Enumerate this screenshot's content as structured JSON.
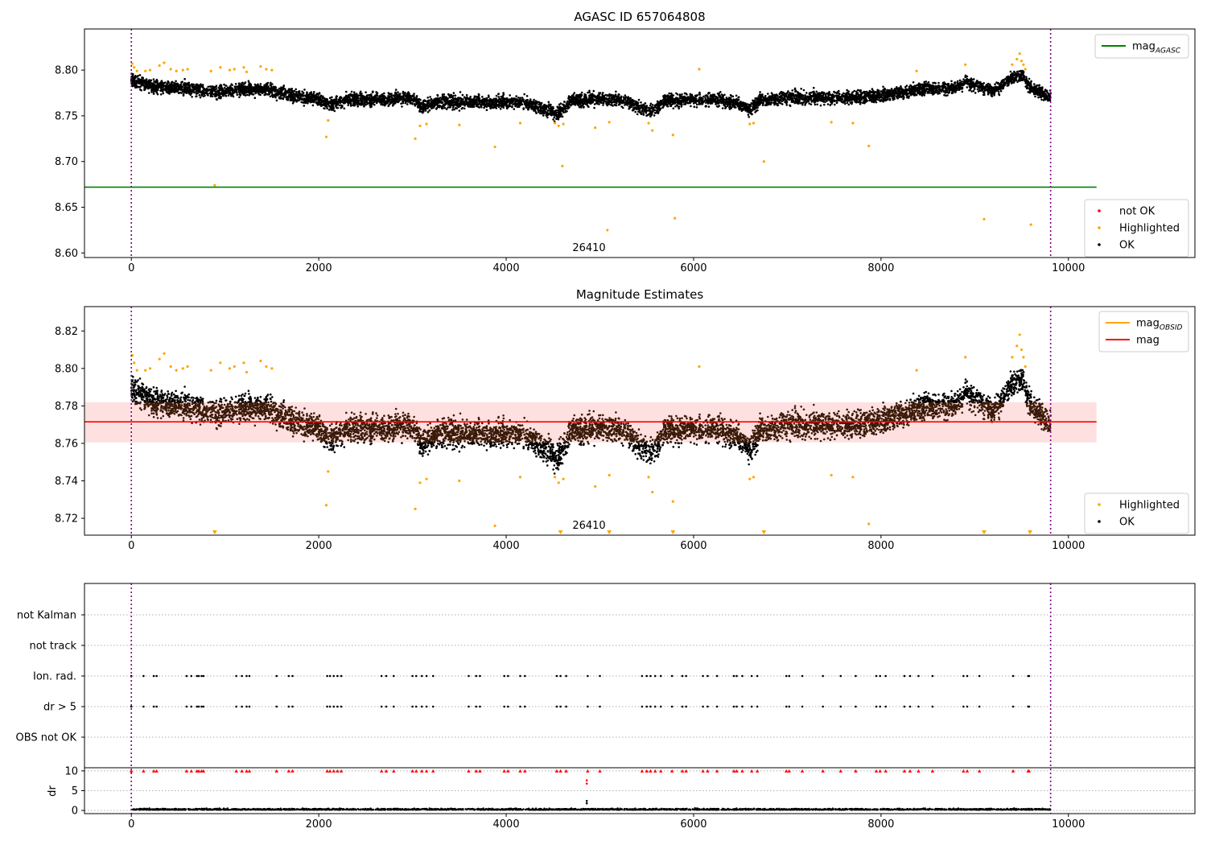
{
  "chart_data": [
    {
      "type": "scatter",
      "title": "AGASC ID 657064808",
      "annotation": "26410",
      "xlim": [
        -500,
        11350
      ],
      "ylim": [
        8.595,
        8.845
      ],
      "xticks": [
        0,
        2000,
        4000,
        6000,
        8000,
        10000
      ],
      "yticks": [
        8.6,
        8.65,
        8.7,
        8.75,
        8.8
      ],
      "vlines": [
        0,
        9810
      ],
      "hline": {
        "name": "mag",
        "sub": "AGASC",
        "y": 8.672,
        "x_range": [
          -500,
          10300
        ],
        "color": "#008000"
      },
      "legend_top": [
        {
          "name": "mag",
          "sub": "AGASC",
          "color": "#008000",
          "kind": "line"
        }
      ],
      "legend_bottom": [
        {
          "name": "not OK",
          "color": "#ff0000",
          "kind": "point"
        },
        {
          "name": "Highlighted",
          "color": "#ffa500",
          "kind": "point"
        },
        {
          "name": "OK",
          "color": "#000000",
          "kind": "point"
        }
      ],
      "ok_trend": [
        [
          0,
          8.79
        ],
        [
          250,
          8.781
        ],
        [
          600,
          8.78
        ],
        [
          900,
          8.776
        ],
        [
          1200,
          8.779
        ],
        [
          1500,
          8.778
        ],
        [
          1700,
          8.772
        ],
        [
          2000,
          8.768
        ],
        [
          2100,
          8.762
        ],
        [
          2300,
          8.768
        ],
        [
          2800,
          8.768
        ],
        [
          3000,
          8.77
        ],
        [
          3100,
          8.76
        ],
        [
          3300,
          8.766
        ],
        [
          3800,
          8.765
        ],
        [
          4200,
          8.765
        ],
        [
          4550,
          8.752
        ],
        [
          4700,
          8.767
        ],
        [
          5000,
          8.768
        ],
        [
          5200,
          8.768
        ],
        [
          5550,
          8.755
        ],
        [
          5700,
          8.767
        ],
        [
          6200,
          8.768
        ],
        [
          6500,
          8.763
        ],
        [
          6600,
          8.757
        ],
        [
          6700,
          8.766
        ],
        [
          7000,
          8.77
        ],
        [
          7500,
          8.77
        ],
        [
          7800,
          8.77
        ],
        [
          8000,
          8.772
        ],
        [
          8400,
          8.779
        ],
        [
          8800,
          8.781
        ],
        [
          8900,
          8.787
        ],
        [
          9200,
          8.777
        ],
        [
          9400,
          8.792
        ],
        [
          9500,
          8.794
        ],
        [
          9600,
          8.78
        ],
        [
          9810,
          8.77
        ]
      ],
      "ok_band": 0.012,
      "highlighted": [
        [
          10,
          8.807
        ],
        [
          30,
          8.803
        ],
        [
          60,
          8.799
        ],
        [
          150,
          8.799
        ],
        [
          200,
          8.8
        ],
        [
          300,
          8.805
        ],
        [
          350,
          8.808
        ],
        [
          420,
          8.801
        ],
        [
          480,
          8.799
        ],
        [
          550,
          8.8
        ],
        [
          600,
          8.801
        ],
        [
          850,
          8.799
        ],
        [
          890,
          8.674
        ],
        [
          950,
          8.803
        ],
        [
          1050,
          8.8
        ],
        [
          1100,
          8.801
        ],
        [
          1200,
          8.803
        ],
        [
          1230,
          8.798
        ],
        [
          1380,
          8.804
        ],
        [
          1440,
          8.801
        ],
        [
          1500,
          8.8
        ],
        [
          2080,
          8.727
        ],
        [
          2100,
          8.745
        ],
        [
          3030,
          8.725
        ],
        [
          3080,
          8.739
        ],
        [
          3150,
          8.741
        ],
        [
          3500,
          8.74
        ],
        [
          3880,
          8.716
        ],
        [
          4150,
          8.742
        ],
        [
          4520,
          8.742
        ],
        [
          4560,
          8.739
        ],
        [
          4600,
          8.695
        ],
        [
          4610,
          8.741
        ],
        [
          4950,
          8.737
        ],
        [
          5080,
          8.625
        ],
        [
          5100,
          8.743
        ],
        [
          5520,
          8.742
        ],
        [
          5560,
          8.734
        ],
        [
          5780,
          8.729
        ],
        [
          5800,
          8.638
        ],
        [
          6060,
          8.801
        ],
        [
          6600,
          8.741
        ],
        [
          6640,
          8.742
        ],
        [
          6750,
          8.7
        ],
        [
          7470,
          8.743
        ],
        [
          7700,
          8.742
        ],
        [
          7870,
          8.717
        ],
        [
          8380,
          8.799
        ],
        [
          8900,
          8.806
        ],
        [
          9100,
          8.637
        ],
        [
          9400,
          8.806
        ],
        [
          9450,
          8.812
        ],
        [
          9480,
          8.818
        ],
        [
          9500,
          8.81
        ],
        [
          9520,
          8.806
        ],
        [
          9540,
          8.801
        ],
        [
          9600,
          8.631
        ]
      ]
    },
    {
      "type": "scatter",
      "title": "Magnitude Estimates",
      "annotation": "26410",
      "xlim": [
        -500,
        11350
      ],
      "ylim": [
        8.711,
        8.833
      ],
      "xticks": [
        0,
        2000,
        4000,
        6000,
        8000,
        10000
      ],
      "yticks": [
        8.72,
        8.74,
        8.76,
        8.78,
        8.8,
        8.82
      ],
      "vlines": [
        0,
        9810
      ],
      "mag_line": {
        "y": 8.7715,
        "x_range": [
          -500,
          10300
        ],
        "color": "#ff0000"
      },
      "mag_band": [
        8.7605,
        8.782
      ],
      "legend_top": [
        {
          "name": "mag",
          "sub": "OBSID",
          "color": "#ffa500",
          "kind": "line"
        },
        {
          "name": "mag",
          "sub": "",
          "color": "#ff0000",
          "kind": "line"
        }
      ],
      "legend_bottom": [
        {
          "name": "Highlighted",
          "color": "#ffa500",
          "kind": "point"
        },
        {
          "name": "OK",
          "color": "#000000",
          "kind": "point"
        }
      ],
      "low_markers_x": [
        890,
        4580,
        5100,
        5780,
        6750,
        9100,
        9590
      ]
    },
    {
      "type": "scatter",
      "title": "",
      "xlim": [
        -500,
        11350
      ],
      "xticks": [
        0,
        2000,
        4000,
        6000,
        8000,
        10000
      ],
      "vlines": [
        0,
        9810
      ],
      "categories": [
        "not Kalman",
        "not track",
        "Ion. rad.",
        "dr > 5",
        "OBS not OK"
      ],
      "flag_x": [
        0,
        130,
        240,
        270,
        590,
        640,
        700,
        720,
        750,
        770,
        1120,
        1180,
        1230,
        1260,
        1550,
        1680,
        1720,
        2090,
        2120,
        2160,
        2200,
        2240,
        2670,
        2720,
        2800,
        3000,
        3040,
        3100,
        3150,
        3220,
        3600,
        3680,
        3720,
        3980,
        4020,
        4150,
        4200,
        4540,
        4580,
        4640,
        4870,
        5000,
        5450,
        5500,
        5540,
        5590,
        5650,
        5770,
        5880,
        5920,
        6100,
        6150,
        6250,
        6430,
        6460,
        6520,
        6620,
        6680,
        6990,
        7020,
        7160,
        7380,
        7570,
        7730,
        7950,
        7990,
        8050,
        8250,
        8310,
        8400,
        8550,
        8880,
        8920,
        9050,
        9410,
        9570,
        9580
      ],
      "dr_ylabel": "dr",
      "dr_ylim": [
        -0.8,
        10.8
      ],
      "dr_yticks": [
        0,
        5,
        10
      ],
      "dr_clip_value": 10,
      "dr_outliers": [
        [
          4860,
          6.8
        ],
        [
          4860,
          7.6
        ],
        [
          4860,
          1.8
        ],
        [
          4860,
          2.4
        ]
      ]
    }
  ]
}
